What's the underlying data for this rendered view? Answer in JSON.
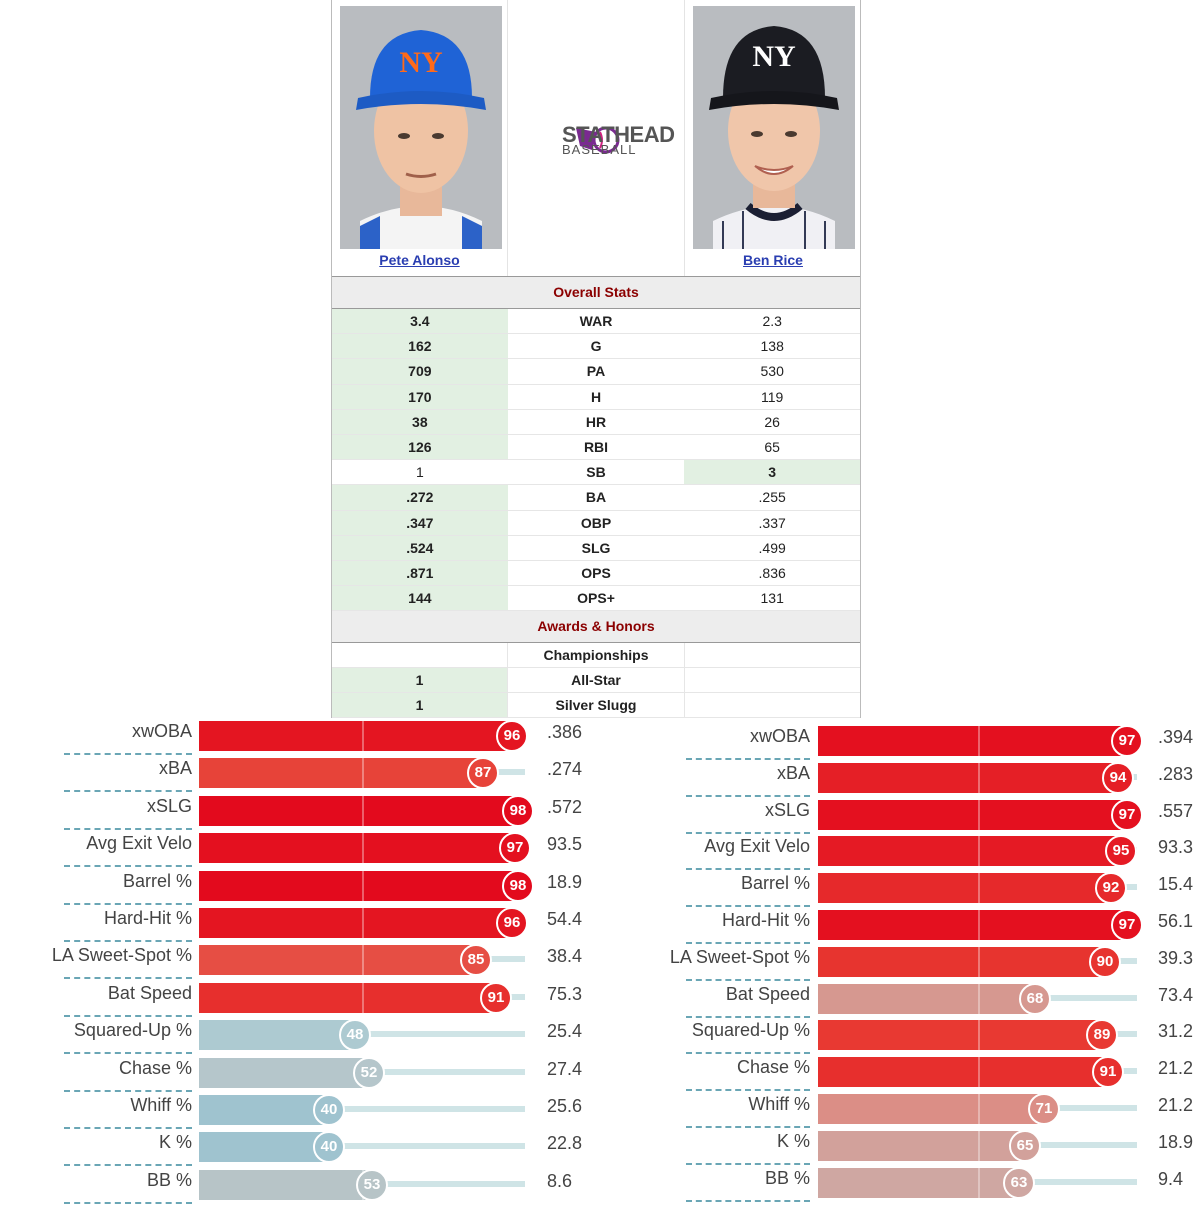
{
  "comparison": {
    "player1": {
      "name": "Pete Alonso"
    },
    "player2": {
      "name": "Ben Rice"
    },
    "logo": {
      "line1": "STATHEAD",
      "line2": "BASEBALL"
    },
    "overall_title": "Overall Stats",
    "overall": [
      {
        "stat": "WAR",
        "p1": "3.4",
        "p2": "2.3",
        "winner": 1
      },
      {
        "stat": "G",
        "p1": "162",
        "p2": "138",
        "winner": 1
      },
      {
        "stat": "PA",
        "p1": "709",
        "p2": "530",
        "winner": 1
      },
      {
        "stat": "H",
        "p1": "170",
        "p2": "119",
        "winner": 1
      },
      {
        "stat": "HR",
        "p1": "38",
        "p2": "26",
        "winner": 1
      },
      {
        "stat": "RBI",
        "p1": "126",
        "p2": "65",
        "winner": 1
      },
      {
        "stat": "SB",
        "p1": "1",
        "p2": "3",
        "winner": 2
      },
      {
        "stat": "BA",
        "p1": ".272",
        "p2": ".255",
        "winner": 1
      },
      {
        "stat": "OBP",
        "p1": ".347",
        "p2": ".337",
        "winner": 1
      },
      {
        "stat": "SLG",
        "p1": ".524",
        "p2": ".499",
        "winner": 1
      },
      {
        "stat": "OPS",
        "p1": ".871",
        "p2": ".836",
        "winner": 1
      },
      {
        "stat": "OPS+",
        "p1": "144",
        "p2": "131",
        "winner": 1
      }
    ],
    "awards_title": "Awards & Honors",
    "awards": [
      {
        "award": "Championships",
        "p1": "",
        "p2": "",
        "winner": 0
      },
      {
        "award": "All-Star",
        "p1": "1",
        "p2": "",
        "winner": 1
      },
      {
        "award": "Silver Slugg",
        "p1": "1",
        "p2": "",
        "winner": 1
      }
    ]
  },
  "percentiles_left": [
    {
      "label": "xwOBA",
      "pct": 96,
      "value": ".386"
    },
    {
      "label": "xBA",
      "pct": 87,
      "value": ".274"
    },
    {
      "label": "xSLG",
      "pct": 98,
      "value": ".572"
    },
    {
      "label": "Avg Exit Velo",
      "pct": 97,
      "value": "93.5"
    },
    {
      "label": "Barrel %",
      "pct": 98,
      "value": "18.9"
    },
    {
      "label": "Hard-Hit %",
      "pct": 96,
      "value": "54.4"
    },
    {
      "label": "LA Sweet-Spot %",
      "pct": 85,
      "value": "38.4"
    },
    {
      "label": "Bat Speed",
      "pct": 91,
      "value": "75.3"
    },
    {
      "label": "Squared-Up %",
      "pct": 48,
      "value": "25.4"
    },
    {
      "label": "Chase %",
      "pct": 52,
      "value": "27.4"
    },
    {
      "label": "Whiff %",
      "pct": 40,
      "value": "25.6"
    },
    {
      "label": "K %",
      "pct": 40,
      "value": "22.8"
    },
    {
      "label": "BB %",
      "pct": 53,
      "value": "8.6"
    }
  ],
  "percentiles_right": [
    {
      "label": "xwOBA",
      "pct": 97,
      "value": ".394"
    },
    {
      "label": "xBA",
      "pct": 94,
      "value": ".283"
    },
    {
      "label": "xSLG",
      "pct": 97,
      "value": ".557"
    },
    {
      "label": "Avg Exit Velo",
      "pct": 95,
      "value": "93.3"
    },
    {
      "label": "Barrel %",
      "pct": 92,
      "value": "15.4"
    },
    {
      "label": "Hard-Hit %",
      "pct": 97,
      "value": "56.1"
    },
    {
      "label": "LA Sweet-Spot %",
      "pct": 90,
      "value": "39.3"
    },
    {
      "label": "Bat Speed",
      "pct": 68,
      "value": "73.4"
    },
    {
      "label": "Squared-Up %",
      "pct": 89,
      "value": "31.2"
    },
    {
      "label": "Chase %",
      "pct": 91,
      "value": "21.2"
    },
    {
      "label": "Whiff %",
      "pct": 71,
      "value": "21.2"
    },
    {
      "label": "K %",
      "pct": 65,
      "value": "18.9"
    },
    {
      "label": "BB %",
      "pct": 63,
      "value": "9.4"
    }
  ]
}
